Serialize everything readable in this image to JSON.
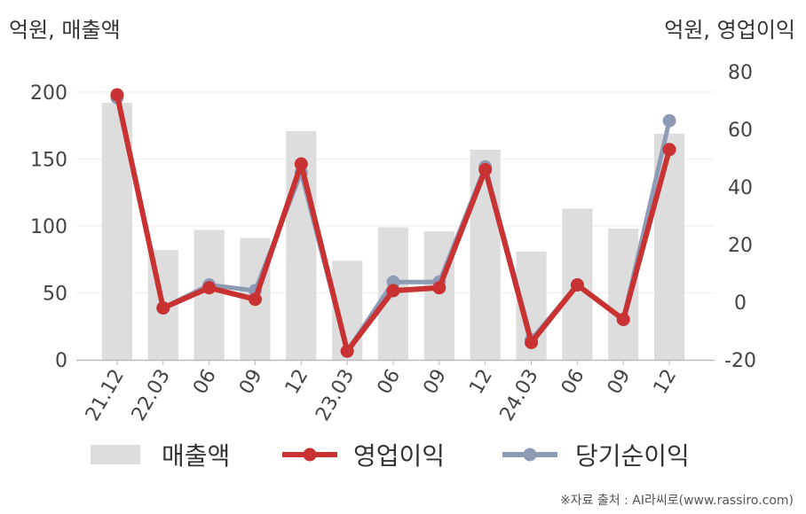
{
  "units": {
    "left": "억원, 매출액",
    "right": "억원, 영업이익"
  },
  "source": "※자료 출처 : AI라씨로(www.rassiro.com)",
  "chart_data": {
    "type": "bar+line",
    "categories": [
      "21.12",
      "22.03",
      "06",
      "09",
      "12",
      "23.03",
      "06",
      "09",
      "12",
      "24.03",
      "06",
      "09",
      "12"
    ],
    "bar_series": {
      "name": "매출액",
      "axis": "left",
      "color": "#dddddd",
      "values": [
        192,
        82,
        97,
        91,
        171,
        74,
        99,
        96,
        157,
        81,
        113,
        98,
        169
      ]
    },
    "line_series": [
      {
        "name": "당기순이익",
        "axis": "right",
        "color": "#8e9bb5",
        "values": [
          71,
          -2,
          6,
          4,
          45,
          -17,
          7,
          7,
          47,
          -13,
          6,
          -6,
          63
        ]
      },
      {
        "name": "영업이익",
        "axis": "right",
        "color": "#c83232",
        "values": [
          72,
          -2,
          5,
          1,
          48,
          -17,
          4,
          5,
          46,
          -14,
          6,
          -6,
          53
        ]
      }
    ],
    "left_axis": {
      "min": 0,
      "max": 200,
      "ticks": [
        0,
        50,
        100,
        150,
        200
      ]
    },
    "right_axis": {
      "min": -20,
      "max": 80,
      "ticks": [
        -20,
        0,
        20,
        40,
        60,
        80
      ]
    },
    "grid": true,
    "legend": {
      "position": "bottom",
      "items": [
        "매출액",
        "영업이익",
        "당기순이익"
      ]
    }
  }
}
